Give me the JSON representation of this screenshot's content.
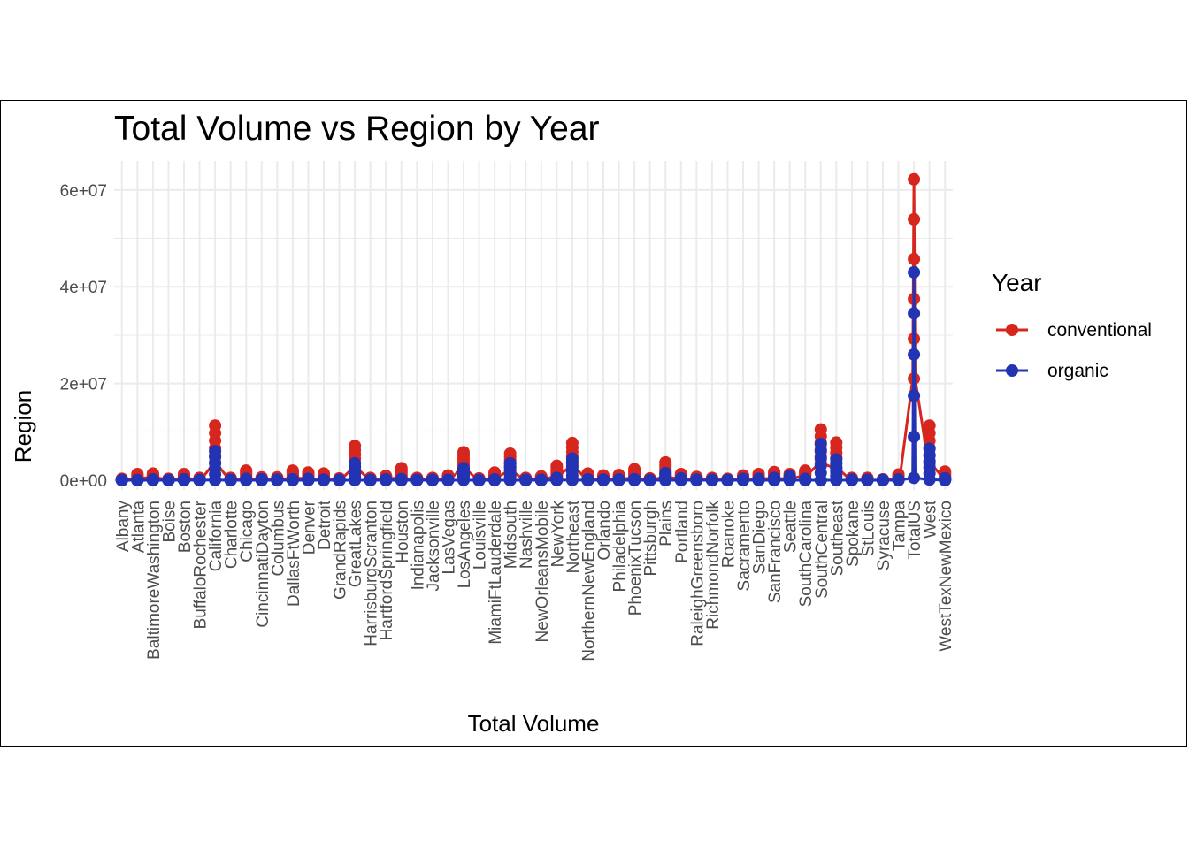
{
  "chart_data": {
    "type": "line",
    "title": "Total Volume vs Region by Year",
    "xlabel": "Total Volume",
    "ylabel": "Region",
    "legend_title": "Year",
    "legend_position": "right",
    "grid": true,
    "ylim": [
      -2000000,
      66000000
    ],
    "yticks": [
      0,
      20000000,
      40000000,
      60000000
    ],
    "ytick_labels": [
      "0e+00",
      "2e+07",
      "4e+07",
      "6e+07"
    ],
    "categories": [
      "Albany",
      "Atlanta",
      "BaltimoreWashington",
      "Boise",
      "Boston",
      "BuffaloRochester",
      "California",
      "Charlotte",
      "Chicago",
      "CincinnatiDayton",
      "Columbus",
      "DallasFtWorth",
      "Denver",
      "Detroit",
      "GrandRapids",
      "GreatLakes",
      "HarrisburgScranton",
      "HartfordSpringfield",
      "Houston",
      "Indianapolis",
      "Jacksonville",
      "LasVegas",
      "LosAngeles",
      "Louisville",
      "MiamiFtLauderdale",
      "Midsouth",
      "Nashville",
      "NewOrleansMobile",
      "NewYork",
      "Northeast",
      "NorthernNewEngland",
      "Orlando",
      "Philadelphia",
      "PhoenixTucson",
      "Pittsburgh",
      "Plains",
      "Portland",
      "RaleighGreensboro",
      "RichmondNorfolk",
      "Roanoke",
      "Sacramento",
      "SanDiego",
      "SanFrancisco",
      "Seattle",
      "SouthCarolina",
      "SouthCentral",
      "Southeast",
      "Spokane",
      "StLouis",
      "Syracuse",
      "Tampa",
      "TotalUS",
      "West",
      "WestTexNewMexico"
    ],
    "series": [
      {
        "name": "conventional",
        "color": "#d7261e",
        "min": [
          80000,
          280000,
          700000,
          70000,
          500000,
          110000,
          3500000,
          100000,
          300000,
          100000,
          100000,
          500000,
          350000,
          220000,
          80000,
          2700000,
          150000,
          350000,
          500000,
          70000,
          140000,
          100000,
          2500000,
          60000,
          450000,
          2000000,
          80000,
          170000,
          800000,
          3000000,
          120000,
          150000,
          230000,
          500000,
          60000,
          700000,
          250000,
          180000,
          180000,
          60000,
          220000,
          300000,
          400000,
          300000,
          1000000,
          3500000,
          2500000,
          80000,
          60000,
          30000,
          200000,
          21000000,
          3500000,
          350000
        ],
        "max": [
          300000,
          1300000,
          1400000,
          300000,
          1300000,
          500000,
          11300000,
          500000,
          2000000,
          600000,
          600000,
          2000000,
          1600000,
          1400000,
          400000,
          7100000,
          500000,
          900000,
          2500000,
          500000,
          500000,
          1000000,
          5800000,
          400000,
          1600000,
          5500000,
          500000,
          800000,
          3000000,
          7700000,
          1400000,
          1000000,
          1100000,
          2300000,
          400000,
          3700000,
          1300000,
          700000,
          500000,
          300000,
          1000000,
          1300000,
          1700000,
          1300000,
          2000000,
          10500000,
          7800000,
          500000,
          500000,
          200000,
          1200000,
          62200000,
          11300000,
          1800000
        ]
      },
      {
        "name": "organic",
        "color": "#2233b4",
        "min": [
          1000,
          2000,
          8000,
          1000,
          5000,
          2000,
          50000,
          2000,
          10000,
          5000,
          4000,
          8000,
          15000,
          5000,
          3000,
          20000,
          3000,
          5000,
          8000,
          2000,
          3000,
          3000,
          40000,
          1000,
          4000,
          15000,
          2000,
          2000,
          30000,
          50000,
          8000,
          4000,
          8000,
          5000,
          1000,
          10000,
          20000,
          5000,
          5000,
          1000,
          10000,
          15000,
          20000,
          30000,
          10000,
          20000,
          30000,
          5000,
          3000,
          2000,
          5000,
          500000,
          150000,
          10000
        ],
        "max": [
          30000,
          50000,
          200000,
          40000,
          200000,
          100000,
          6000000,
          100000,
          300000,
          200000,
          150000,
          200000,
          300000,
          150000,
          100000,
          3500000,
          100000,
          200000,
          250000,
          100000,
          100000,
          100000,
          2500000,
          50000,
          200000,
          3500000,
          100000,
          100000,
          500000,
          4500000,
          200000,
          150000,
          200000,
          250000,
          50000,
          1500000,
          400000,
          150000,
          100000,
          50000,
          300000,
          300000,
          500000,
          800000,
          300000,
          7500000,
          4300000,
          150000,
          100000,
          80000,
          200000,
          43000000,
          6500000,
          400000
        ]
      }
    ]
  }
}
